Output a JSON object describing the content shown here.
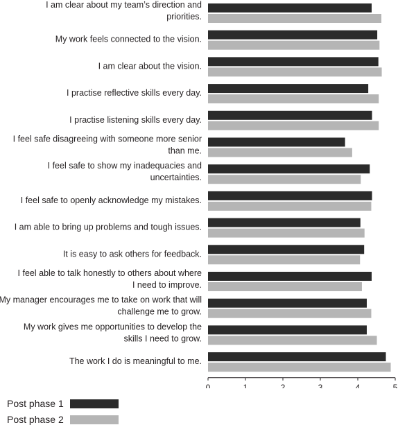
{
  "chart_data": {
    "type": "bar",
    "orientation": "horizontal",
    "categories": [
      "I am clear about my team’s direction and priorities.",
      "My work feels connected to the vision.",
      "I am clear about the vision.",
      "I practise reflective skills every day.",
      "I practise listening skills every day.",
      "I feel safe disagreeing with someone more senior than me.",
      "I feel safe to show my inadequacies and uncertainties.",
      "I feel safe to openly acknowledge my mistakes.",
      "I am able to bring up problems and tough issues.",
      "It is easy to ask others for feedback.",
      "I feel able to talk honestly to others about where I need to improve.",
      "My manager encourages me to take on work that will challenge me to grow.",
      "My work gives me opportunities to develop the skills I need to grow.",
      "The work I do is meaningful to me."
    ],
    "series": [
      {
        "name": "Post phase 1",
        "color": "#2b2b2b",
        "values": [
          4.37,
          4.52,
          4.55,
          4.28,
          4.38,
          3.66,
          4.32,
          4.38,
          4.07,
          4.17,
          4.37,
          4.24,
          4.24,
          4.75
        ]
      },
      {
        "name": "Post phase 2",
        "color": "#b5b5b5",
        "values": [
          4.63,
          4.58,
          4.64,
          4.56,
          4.56,
          3.85,
          4.08,
          4.36,
          4.18,
          4.06,
          4.11,
          4.36,
          4.51,
          4.88
        ]
      }
    ],
    "xlim": [
      0,
      5
    ],
    "xticks": [
      "0",
      "1",
      "2",
      "3",
      "4",
      "5"
    ],
    "xlabel": "",
    "ylabel": "",
    "title": "",
    "grid": false,
    "legend_position": "bottom-left"
  }
}
